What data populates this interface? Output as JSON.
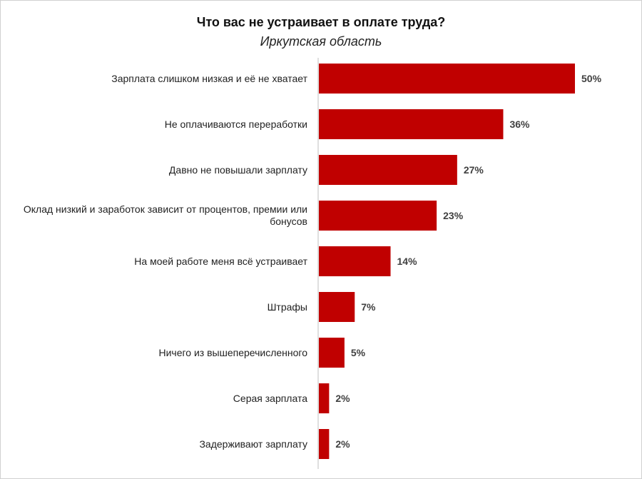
{
  "chart_data": {
    "type": "bar",
    "orientation": "horizontal",
    "title": "Что вас не устраивает в оплате труда?",
    "subtitle": "Иркутская область",
    "categories": [
      "Зарплата слишком низкая и её не хватает",
      "Не оплачиваются переработки",
      "Давно не повышали зарплату",
      "Оклад низкий и заработок зависит от процентов, премии или бонусов",
      "На моей работе меня всё устраивает",
      "Штрафы",
      "Ничего из вышеперечисленного",
      "Серая зарплата",
      "Задерживают зарплату"
    ],
    "values": [
      50,
      36,
      27,
      23,
      14,
      7,
      5,
      2,
      2
    ],
    "value_labels": [
      "50%",
      "36%",
      "27%",
      "23%",
      "14%",
      "7%",
      "5%",
      "2%",
      "2%"
    ],
    "color": "#c00000"
  }
}
